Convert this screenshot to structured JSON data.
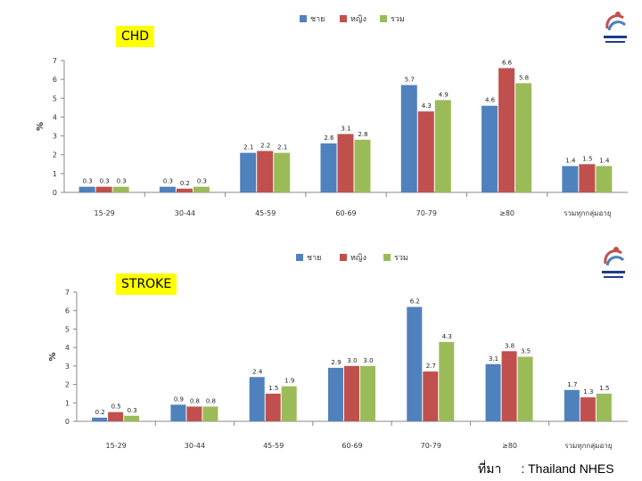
{
  "colors": {
    "male": "#4f81bd",
    "female": "#c0504d",
    "total": "#9bbb59"
  },
  "chart_data": [
    {
      "type": "bar",
      "label": "CHD",
      "ylabel": "%",
      "ylim": [
        0,
        7
      ],
      "yticks": [
        "0",
        "1",
        "2",
        "3",
        "4",
        "5",
        "6",
        "7"
      ],
      "legend_position": "top",
      "categories": [
        "15-29",
        "30-44",
        "45-59",
        "60-69",
        "70-79",
        "≥80",
        "รวมทุกกลุ่มอายุ"
      ],
      "series": [
        {
          "name": "ชาย",
          "values": [
            0.3,
            0.3,
            2.1,
            2.6,
            5.7,
            4.6,
            1.4
          ],
          "labels": [
            "0.3",
            "0.3",
            "2.1",
            "2.6",
            "5.7",
            "4.6",
            "1.4"
          ]
        },
        {
          "name": "หญิง",
          "values": [
            0.3,
            0.2,
            2.2,
            3.1,
            4.3,
            6.6,
            1.5
          ],
          "labels": [
            "0.3",
            "0.2",
            "2.2",
            "3.1",
            "4.3",
            "6.6",
            "1.5"
          ]
        },
        {
          "name": "รวม",
          "values": [
            0.3,
            0.3,
            2.1,
            2.8,
            4.9,
            5.8,
            1.4
          ],
          "labels": [
            "0.3",
            "0.3",
            "2.1",
            "2.8",
            "4.9",
            "5.8",
            "1.4"
          ]
        }
      ]
    },
    {
      "type": "bar",
      "label": "STROKE",
      "ylabel": "%",
      "ylim": [
        0,
        7
      ],
      "yticks": [
        "0",
        "1",
        "2",
        "3",
        "4",
        "5",
        "6",
        "7"
      ],
      "legend_position": "top",
      "categories": [
        "15-29",
        "30-44",
        "45-59",
        "60-69",
        "70-79",
        "≥80",
        "รวมทุกกลุ่มอายุ"
      ],
      "series": [
        {
          "name": "ชาย",
          "values": [
            0.2,
            0.9,
            2.4,
            2.9,
            6.2,
            3.1,
            1.7
          ],
          "labels": [
            "0.2",
            "0.9",
            "2.4",
            "2.9",
            "6.2",
            "3.1",
            "1.7"
          ]
        },
        {
          "name": "หญิง",
          "values": [
            0.5,
            0.8,
            1.5,
            3.0,
            2.7,
            3.8,
            1.3
          ],
          "labels": [
            "0.5",
            "0.8",
            "1.5",
            "3.0",
            "2.7",
            "3.8",
            "1.3"
          ]
        },
        {
          "name": "รวม",
          "values": [
            0.3,
            0.8,
            1.9,
            3.0,
            4.3,
            3.5,
            1.5
          ],
          "labels": [
            "0.3",
            "0.8",
            "1.9",
            "3.0",
            "4.3",
            "3.5",
            "1.5"
          ]
        }
      ]
    }
  ],
  "source": {
    "label": "ที่มา",
    "text": ": Thailand NHES"
  }
}
